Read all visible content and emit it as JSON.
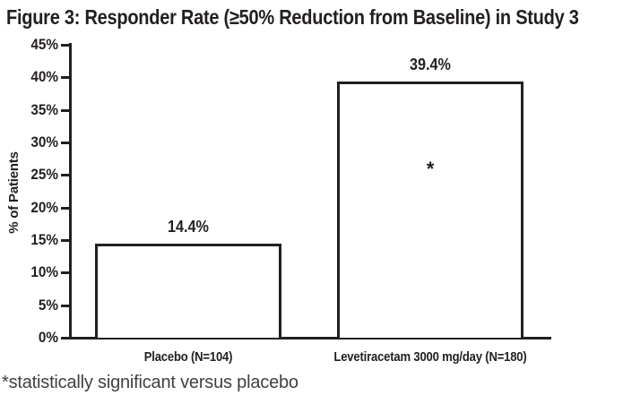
{
  "figure": {
    "title": "Figure 3: Responder Rate (≥50% Reduction from Baseline) in Study 3",
    "footnote": "*statistically significant versus placebo"
  },
  "chart_data": {
    "type": "bar",
    "title": "Figure 3: Responder Rate (≥50% Reduction from Baseline) in Study 3",
    "categories": [
      "Placebo (N=104)",
      "Levetiracetam 3000 mg/day (N=180)"
    ],
    "values": [
      14.4,
      39.4
    ],
    "value_labels": [
      "14.4%",
      "39.4%"
    ],
    "bar_annotations": [
      "",
      "*"
    ],
    "annotation_note": "*statistically significant versus placebo",
    "xlabel": "",
    "ylabel": "% of Patients",
    "ylim": [
      0,
      45
    ],
    "yticks": [
      0,
      5,
      10,
      15,
      20,
      25,
      30,
      35,
      40,
      45
    ],
    "ytick_labels": [
      "0%",
      "5%",
      "10%",
      "15%",
      "20%",
      "25%",
      "30%",
      "35%",
      "40%",
      "45%"
    ],
    "grid": false,
    "legend": "none",
    "bar_fill": "#ffffff",
    "bar_border_color": "#231f20"
  },
  "colors": {
    "ink": "#231f20",
    "footnote_text": "#404040",
    "background": "#ffffff"
  }
}
